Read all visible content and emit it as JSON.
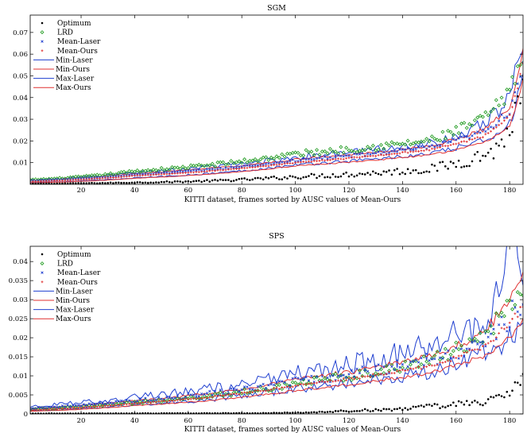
{
  "chart_data": [
    {
      "type": "line",
      "title": "SGM",
      "xlabel": "KITTI dataset, frames sorted by AUSC values of Mean-Ours",
      "ylabel": "",
      "xlim": [
        1,
        185
      ],
      "ylim": [
        0,
        0.078
      ],
      "x_ticks": [
        20,
        40,
        60,
        80,
        100,
        120,
        140,
        160,
        180
      ],
      "y_ticks": [
        0.01,
        0.02,
        0.03,
        0.04,
        0.05,
        0.06,
        0.07
      ],
      "y_tick_labels": [
        "0.01",
        "0.02",
        "0.03",
        "0.04",
        "0.05",
        "0.06",
        "0.07"
      ],
      "grid": false,
      "legend_position": "top-left",
      "n_frames": 185,
      "series": [
        {
          "name": "Optimum",
          "style": "dots",
          "color": "#000000",
          "keypoints": [
            [
              1,
              0.0003
            ],
            [
              40,
              0.0008
            ],
            [
              100,
              0.0035
            ],
            [
              150,
              0.007
            ],
            [
              175,
              0.016
            ],
            [
              185,
              0.041
            ]
          ],
          "jitter": 0.28
        },
        {
          "name": "LRD",
          "style": "diamond",
          "color": "#2ca02c",
          "keypoints": [
            [
              1,
              0.002
            ],
            [
              40,
              0.006
            ],
            [
              100,
              0.014
            ],
            [
              150,
              0.02
            ],
            [
              170,
              0.03
            ],
            [
              180,
              0.042
            ],
            [
              185,
              0.062
            ]
          ],
          "jitter": 0.1
        },
        {
          "name": "Mean-Laser",
          "style": "cross",
          "color": "#1f3fd0",
          "keypoints": [
            [
              1,
              0.0015
            ],
            [
              40,
              0.0045
            ],
            [
              100,
              0.011
            ],
            [
              150,
              0.017
            ],
            [
              170,
              0.024
            ],
            [
              180,
              0.034
            ],
            [
              185,
              0.058
            ]
          ],
          "jitter": 0.06
        },
        {
          "name": "Mean-Ours",
          "style": "plus",
          "color": "#e03030",
          "keypoints": [
            [
              1,
              0.0012
            ],
            [
              40,
              0.004
            ],
            [
              100,
              0.01
            ],
            [
              150,
              0.016
            ],
            [
              170,
              0.022
            ],
            [
              180,
              0.032
            ],
            [
              185,
              0.056
            ]
          ],
          "jitter": 0.02
        },
        {
          "name": "Min-Laser",
          "style": "line",
          "color": "#1f3fd0",
          "keypoints": [
            [
              1,
              0.0008
            ],
            [
              40,
              0.003
            ],
            [
              100,
              0.009
            ],
            [
              150,
              0.014
            ],
            [
              170,
              0.02
            ],
            [
              180,
              0.028
            ],
            [
              185,
              0.05
            ]
          ],
          "jitter": 0.08
        },
        {
          "name": "Min-Ours",
          "style": "line",
          "color": "#e03030",
          "keypoints": [
            [
              1,
              0.0007
            ],
            [
              40,
              0.0028
            ],
            [
              100,
              0.0085
            ],
            [
              150,
              0.0135
            ],
            [
              170,
              0.019
            ],
            [
              180,
              0.027
            ],
            [
              185,
              0.048
            ]
          ],
          "jitter": 0.03
        },
        {
          "name": "Max-Laser",
          "style": "line",
          "color": "#1f3fd0",
          "keypoints": [
            [
              1,
              0.002
            ],
            [
              40,
              0.0055
            ],
            [
              100,
              0.0125
            ],
            [
              150,
              0.019
            ],
            [
              170,
              0.027
            ],
            [
              180,
              0.04
            ],
            [
              185,
              0.07
            ]
          ],
          "jitter": 0.12
        },
        {
          "name": "Max-Ours",
          "style": "line",
          "color": "#e03030",
          "keypoints": [
            [
              1,
              0.0018
            ],
            [
              40,
              0.005
            ],
            [
              100,
              0.0115
            ],
            [
              150,
              0.0175
            ],
            [
              170,
              0.025
            ],
            [
              180,
              0.036
            ],
            [
              185,
              0.064
            ]
          ],
          "jitter": 0.04
        }
      ]
    },
    {
      "type": "line",
      "title": "SPS",
      "xlabel": "KITTI dataset, frames sorted by AUSC values of Mean-Ours",
      "ylabel": "",
      "xlim": [
        1,
        185
      ],
      "ylim": [
        0,
        0.044
      ],
      "x_ticks": [
        20,
        40,
        60,
        80,
        100,
        120,
        140,
        160,
        180
      ],
      "y_ticks": [
        0,
        0.005,
        0.01,
        0.015,
        0.02,
        0.025,
        0.03,
        0.035,
        0.04
      ],
      "y_tick_labels": [
        "0",
        "0.005",
        "0.01",
        "0.015",
        "0.02",
        "0.025",
        "0.03",
        "0.035",
        "0.04"
      ],
      "grid": false,
      "legend_position": "top-left",
      "n_frames": 185,
      "series": [
        {
          "name": "Optimum",
          "style": "dots",
          "color": "#000000",
          "keypoints": [
            [
              1,
              0.0001
            ],
            [
              90,
              0.0002
            ],
            [
              120,
              0.0008
            ],
            [
              160,
              0.0025
            ],
            [
              175,
              0.004
            ],
            [
              185,
              0.008
            ]
          ],
          "jitter": 0.35
        },
        {
          "name": "LRD",
          "style": "diamond",
          "color": "#2ca02c",
          "keypoints": [
            [
              1,
              0.0012
            ],
            [
              40,
              0.003
            ],
            [
              100,
              0.008
            ],
            [
              150,
              0.014
            ],
            [
              170,
              0.02
            ],
            [
              185,
              0.034
            ]
          ],
          "jitter": 0.12
        },
        {
          "name": "Mean-Laser",
          "style": "cross",
          "color": "#1f3fd0",
          "keypoints": [
            [
              1,
              0.0015
            ],
            [
              40,
              0.0035
            ],
            [
              100,
              0.0085
            ],
            [
              150,
              0.014
            ],
            [
              170,
              0.019
            ],
            [
              185,
              0.03
            ]
          ],
          "jitter": 0.14
        },
        {
          "name": "Mean-Ours",
          "style": "plus",
          "color": "#e03030",
          "keypoints": [
            [
              1,
              0.001
            ],
            [
              40,
              0.0028
            ],
            [
              100,
              0.0075
            ],
            [
              150,
              0.0125
            ],
            [
              170,
              0.0175
            ],
            [
              185,
              0.028
            ]
          ],
          "jitter": 0.04
        },
        {
          "name": "Min-Laser",
          "style": "line",
          "color": "#1f3fd0",
          "keypoints": [
            [
              1,
              0.0008
            ],
            [
              40,
              0.0025
            ],
            [
              100,
              0.0065
            ],
            [
              150,
              0.011
            ],
            [
              170,
              0.016
            ],
            [
              185,
              0.022
            ]
          ],
          "jitter": 0.18
        },
        {
          "name": "Min-Ours",
          "style": "line",
          "color": "#e03030",
          "keypoints": [
            [
              1,
              0.0007
            ],
            [
              40,
              0.0022
            ],
            [
              100,
              0.0062
            ],
            [
              150,
              0.0108
            ],
            [
              170,
              0.015
            ],
            [
              185,
              0.024
            ]
          ],
          "jitter": 0.05
        },
        {
          "name": "Max-Laser",
          "style": "line",
          "color": "#1f3fd0",
          "keypoints": [
            [
              1,
              0.002
            ],
            [
              40,
              0.0045
            ],
            [
              100,
              0.0105
            ],
            [
              150,
              0.0175
            ],
            [
              170,
              0.024
            ],
            [
              181,
              0.044
            ],
            [
              185,
              0.04
            ]
          ],
          "jitter": 0.22
        },
        {
          "name": "Max-Ours",
          "style": "line",
          "color": "#e03030",
          "keypoints": [
            [
              1,
              0.0015
            ],
            [
              40,
              0.0035
            ],
            [
              100,
              0.009
            ],
            [
              150,
              0.015
            ],
            [
              170,
              0.021
            ],
            [
              185,
              0.038
            ]
          ],
          "jitter": 0.06
        }
      ]
    }
  ]
}
